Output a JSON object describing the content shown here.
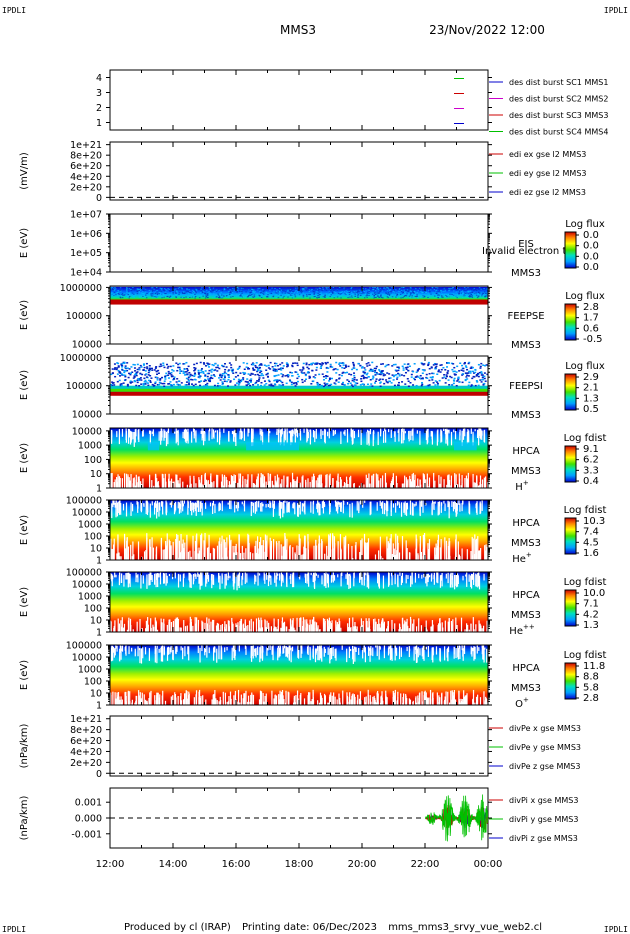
{
  "header": {
    "corner_tl": "IPDLI",
    "corner_tr": "IPDLI",
    "corner_bl": "IPDLI",
    "corner_br": "IPDLI",
    "spacecraft": "MMS3",
    "datetime": "23/Nov/2022 12:00"
  },
  "footer": {
    "produced": "Produced by cl (IRAP)",
    "printing_date": "Printing date: 06/Dec/2023",
    "filename": "mms_mms3_srvy_vue_web2.cl"
  },
  "colors": {
    "red": "#cc0000",
    "green": "#00c000",
    "blue": "#0000cc",
    "magenta": "#cc00cc"
  },
  "chart_data": [
    {
      "id": "burst",
      "type": "line",
      "ytick_labels": [
        "4",
        "3",
        "2",
        "1"
      ],
      "ticks": [
        4,
        3,
        2,
        1
      ],
      "ylim": [
        0.5,
        4.5
      ],
      "legend": [
        {
          "text": "des dist burst SC1 MMS1",
          "color": "#0000cc"
        },
        {
          "text": "des dist burst SC2 MMS2",
          "color": "#cc00cc"
        },
        {
          "text": "des dist burst SC3 MMS3",
          "color": "#cc0000"
        },
        {
          "text": "des dist burst SC4 MMS4",
          "color": "#00c000"
        }
      ],
      "markers": [
        {
          "level": 4,
          "color": "#00c000"
        },
        {
          "level": 3,
          "color": "#cc0000"
        },
        {
          "level": 2,
          "color": "#cc00cc"
        },
        {
          "level": 1,
          "color": "#0000cc"
        }
      ]
    },
    {
      "id": "edi",
      "type": "line",
      "ylabel": "(mV/m)",
      "ytick_labels": [
        "1e+21",
        "8e+20",
        "6e+20",
        "4e+20",
        "2e+20",
        "0"
      ],
      "ticks": [
        1e+21,
        8e+20,
        6e+20,
        4e+20,
        2e+20,
        0
      ],
      "ylim": [
        -5e+19,
        1.05e+21
      ],
      "legend": [
        {
          "text": "edi ex gse l2 MMS3",
          "color": "#cc0000"
        },
        {
          "text": "edi ey gse l2 MMS3",
          "color": "#00c000"
        },
        {
          "text": "edi ez gse l2 MMS3",
          "color": "#0000cc"
        }
      ]
    },
    {
      "id": "eis",
      "type": "heatmap",
      "ylabel": "E (eV)",
      "ytick_labels": [
        "1e+07",
        "1e+06",
        "1e+05",
        "1e+04"
      ],
      "ticks": [
        7,
        6,
        5,
        4
      ],
      "ylim": [
        4,
        7
      ],
      "log_y": true,
      "instrument": "EIS",
      "sc": "MMS3",
      "overlay": "Invalid electron to",
      "colorbar": {
        "title": "Log flux",
        "labels": [
          "0.0",
          "0.0",
          "0.0",
          "0.0"
        ]
      }
    },
    {
      "id": "feepse",
      "type": "heatmap",
      "ylabel": "E (eV)",
      "ytick_labels": [
        "1000000",
        "100000",
        "10000"
      ],
      "ticks": [
        6,
        5,
        4
      ],
      "ylim": [
        4,
        6.05
      ],
      "log_y": true,
      "instrument": "FEEPSE",
      "sc": "MMS3",
      "colorbar": {
        "title": "Log flux",
        "labels": [
          "2.8",
          "1.7",
          "0.6",
          "-0.5"
        ]
      }
    },
    {
      "id": "feepsi",
      "type": "heatmap",
      "ylabel": "E (eV)",
      "ytick_labels": [
        "1000000",
        "100000",
        "10000"
      ],
      "ticks": [
        6,
        5,
        4
      ],
      "ylim": [
        4,
        6.05
      ],
      "log_y": true,
      "instrument": "FEEPSI",
      "sc": "MMS3",
      "colorbar": {
        "title": "Log flux",
        "labels": [
          "2.9",
          "2.1",
          "1.3",
          "0.5"
        ]
      }
    },
    {
      "id": "hpca_h",
      "type": "heatmap",
      "ylabel": "E (eV)",
      "ytick_labels": [
        "10000",
        "1000",
        "100",
        "10",
        "1"
      ],
      "ticks": [
        4,
        3,
        2,
        1,
        0
      ],
      "ylim": [
        0,
        4.2
      ],
      "log_y": true,
      "instrument": "HPCA",
      "sc": "MMS3",
      "species": "H",
      "charge": "+",
      "colorbar": {
        "title": "Log fdist",
        "labels": [
          "9.1",
          "6.2",
          "3.3",
          "0.4"
        ]
      }
    },
    {
      "id": "hpca_he",
      "type": "heatmap",
      "ylabel": "E (eV)",
      "ytick_labels": [
        "100000",
        "10000",
        "1000",
        "100",
        "10",
        "1"
      ],
      "ticks": [
        5,
        4,
        3,
        2,
        1,
        0
      ],
      "ylim": [
        0,
        5
      ],
      "log_y": true,
      "instrument": "HPCA",
      "sc": "MMS3",
      "species": "He",
      "charge": "+",
      "colorbar": {
        "title": "Log fdist",
        "labels": [
          "10.3",
          "7.4",
          "4.5",
          "1.6"
        ]
      }
    },
    {
      "id": "hpca_hepp",
      "type": "heatmap",
      "ylabel": "E (eV)",
      "ytick_labels": [
        "100000",
        "10000",
        "1000",
        "100",
        "10",
        "1"
      ],
      "ticks": [
        5,
        4,
        3,
        2,
        1,
        0
      ],
      "ylim": [
        0,
        5
      ],
      "log_y": true,
      "instrument": "HPCA",
      "sc": "MMS3",
      "species": "He",
      "charge": "++",
      "colorbar": {
        "title": "Log fdist",
        "labels": [
          "10.0",
          "7.1",
          "4.2",
          "1.3"
        ]
      }
    },
    {
      "id": "hpca_o",
      "type": "heatmap",
      "ylabel": "E (eV)",
      "ytick_labels": [
        "100000",
        "10000",
        "1000",
        "100",
        "10",
        "1"
      ],
      "ticks": [
        5,
        4,
        3,
        2,
        1,
        0
      ],
      "ylim": [
        0,
        5
      ],
      "log_y": true,
      "instrument": "HPCA",
      "sc": "MMS3",
      "species": "O",
      "charge": "+",
      "colorbar": {
        "title": "Log fdist",
        "labels": [
          "11.8",
          "8.8",
          "5.8",
          "2.8"
        ]
      }
    },
    {
      "id": "divpe",
      "type": "line",
      "ylabel": "(nPa/km)",
      "ytick_labels": [
        "1e+21",
        "8e+20",
        "6e+20",
        "4e+20",
        "2e+20",
        "0"
      ],
      "ticks": [
        1e+21,
        8e+20,
        6e+20,
        4e+20,
        2e+20,
        0
      ],
      "ylim": [
        -5e+19,
        1.05e+21
      ],
      "legend": [
        {
          "text": "divPe x gse MMS3",
          "color": "#cc0000"
        },
        {
          "text": "divPe y gse MMS3",
          "color": "#00c000"
        },
        {
          "text": "divPe z gse MMS3",
          "color": "#0000cc"
        }
      ]
    },
    {
      "id": "divpi",
      "type": "line",
      "ylabel": "(nPa/km)",
      "ytick_labels": [
        "0.001",
        "0.000",
        "-0.001"
      ],
      "ticks": [
        0.001,
        0,
        -0.001
      ],
      "ylim": [
        -0.0019,
        0.0019
      ],
      "legend": [
        {
          "text": "divPi x gse MMS3",
          "color": "#cc0000"
        },
        {
          "text": "divPi y gse MMS3",
          "color": "#00c000"
        },
        {
          "text": "divPi z gse MMS3",
          "color": "#0000cc"
        }
      ],
      "activity_start": "22:00"
    }
  ],
  "xaxis": {
    "tick_labels": [
      "12:00",
      "14:00",
      "16:00",
      "18:00",
      "20:00",
      "22:00",
      "00:00"
    ],
    "range_hours": [
      12,
      24
    ]
  }
}
